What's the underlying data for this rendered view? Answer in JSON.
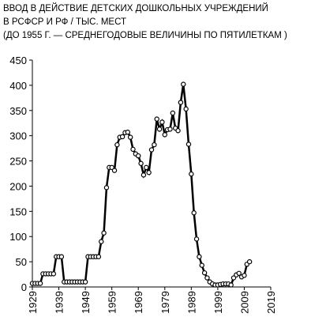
{
  "chart_data": {
    "type": "line",
    "title": [
      "ВВОД В ДЕЙСТВИЕ ДЕТСКИХ ДОШКОЛЬНЫХ УЧРЕЖДЕНИЙ",
      "В РСФСР И РФ / ТЫС. МЕСТ",
      "(ДО 1955 Г. — СРЕДНЕГОДОВЫЕ ВЕЛИЧИНЫ ПО ПЯТИЛЕТКАМ )"
    ],
    "x": [
      1929,
      1930,
      1931,
      1932,
      1933,
      1934,
      1935,
      1936,
      1937,
      1938,
      1939,
      1940,
      1941,
      1942,
      1943,
      1944,
      1945,
      1946,
      1947,
      1948,
      1949,
      1950,
      1951,
      1952,
      1953,
      1954,
      1955,
      1956,
      1957,
      1958,
      1959,
      1960,
      1961,
      1962,
      1963,
      1964,
      1965,
      1966,
      1967,
      1968,
      1969,
      1970,
      1971,
      1972,
      1973,
      1974,
      1975,
      1976,
      1977,
      1978,
      1979,
      1980,
      1981,
      1982,
      1983,
      1984,
      1985,
      1986,
      1987,
      1988,
      1989,
      1990,
      1991,
      1992,
      1993,
      1994,
      1995,
      1996,
      1997,
      1998,
      1999,
      2000,
      2001,
      2002,
      2003,
      2004,
      2005,
      2006,
      2007,
      2008,
      2009,
      2010,
      2011
    ],
    "series": [
      {
        "color": "#000000",
        "values": [
          7,
          7,
          7,
          7,
          26,
          26,
          26,
          26,
          26,
          60,
          60,
          60,
          10,
          10,
          10,
          10,
          10,
          10,
          10,
          10,
          10,
          60,
          60,
          60,
          60,
          60,
          90,
          107,
          197,
          237,
          237,
          231,
          282,
          297,
          298,
          306,
          307,
          297,
          273,
          264,
          260,
          245,
          222,
          237,
          227,
          272,
          282,
          333,
          313,
          327,
          302,
          312,
          313,
          345,
          315,
          310,
          366,
          402,
          353,
          283,
          224,
          147,
          95,
          60,
          43,
          28,
          18,
          10,
          6,
          4,
          4,
          5,
          6,
          6,
          6,
          4,
          18,
          24,
          27,
          20,
          23,
          45,
          50
        ]
      }
    ],
    "xlim": [
      1929,
      2019
    ],
    "xticks": [
      1929,
      1939,
      1949,
      1959,
      1969,
      1979,
      1989,
      1999,
      2009,
      2019
    ],
    "ylim": [
      0,
      450
    ],
    "yticks": [
      0,
      50,
      100,
      150,
      200,
      250,
      300,
      350,
      400,
      450
    ]
  }
}
